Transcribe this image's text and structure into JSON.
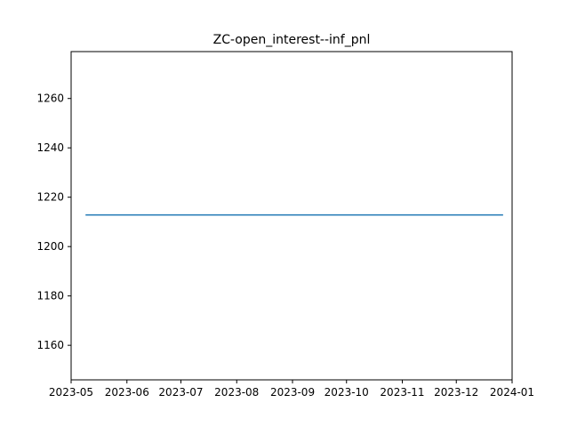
{
  "chart_data": {
    "type": "line",
    "title": "ZC-open_interest--inf_pnl",
    "xlabel": "",
    "ylabel": "",
    "x_axis_type": "date",
    "xlim": [
      "2023-05-01",
      "2024-01-01"
    ],
    "ylim": [
      1146,
      1279
    ],
    "x_ticks": [
      "2023-05",
      "2023-06",
      "2023-07",
      "2023-08",
      "2023-09",
      "2023-10",
      "2023-11",
      "2023-12",
      "2024-01"
    ],
    "y_ticks": [
      1160,
      1180,
      1200,
      1220,
      1240,
      1260
    ],
    "grid": false,
    "legend": "none",
    "series": [
      {
        "color": "#1f77b4",
        "x": [
          "2023-05-09",
          "2023-12-27"
        ],
        "y": [
          1212.8,
          1212.8
        ]
      }
    ]
  }
}
